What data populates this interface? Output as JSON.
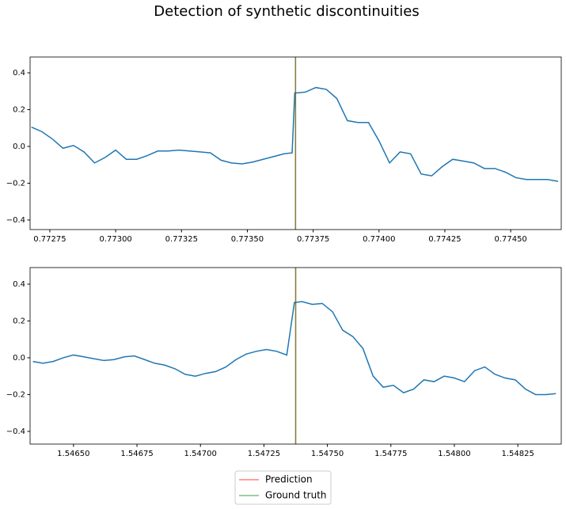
{
  "title": "Detection of synthetic discontinuities",
  "legend": {
    "loc": "lower center",
    "opacity": 0.5,
    "entries": [
      {
        "name": "Prediction",
        "color": "red"
      },
      {
        "name": "Ground truth",
        "color": "green"
      }
    ]
  },
  "chart_data": [
    {
      "type": "line",
      "x": [
        0.77268,
        0.77272,
        0.77276,
        0.7728,
        0.77284,
        0.77288,
        0.77292,
        0.77296,
        0.773,
        0.77304,
        0.77308,
        0.77312,
        0.77316,
        0.7732,
        0.77324,
        0.77328,
        0.77332,
        0.77336,
        0.7734,
        0.77344,
        0.77348,
        0.77352,
        0.77356,
        0.7736,
        0.77364,
        0.77367,
        0.77368,
        0.77372,
        0.77376,
        0.7738,
        0.77384,
        0.77388,
        0.77392,
        0.77396,
        0.774,
        0.77404,
        0.77408,
        0.77412,
        0.77416,
        0.7742,
        0.77424,
        0.77428,
        0.77432,
        0.77436,
        0.7744,
        0.77444,
        0.77448,
        0.77452,
        0.77456,
        0.7746,
        0.77464,
        0.77468
      ],
      "series": [
        {
          "color": "#1f77b4",
          "values": [
            0.105,
            0.08,
            0.04,
            -0.01,
            0.005,
            -0.03,
            -0.09,
            -0.06,
            -0.02,
            -0.07,
            -0.07,
            -0.05,
            -0.025,
            -0.025,
            -0.02,
            -0.025,
            -0.03,
            -0.035,
            -0.075,
            -0.09,
            -0.095,
            -0.085,
            -0.07,
            -0.055,
            -0.04,
            -0.035,
            0.29,
            0.295,
            0.32,
            0.31,
            0.26,
            0.14,
            0.13,
            0.13,
            0.03,
            -0.09,
            -0.03,
            -0.04,
            -0.15,
            -0.16,
            -0.11,
            -0.07,
            -0.08,
            -0.09,
            -0.12,
            -0.12,
            -0.14,
            -0.17,
            -0.18,
            -0.18,
            -0.18,
            -0.19
          ]
        }
      ],
      "markers": [
        0.773683,
        0.773683
      ],
      "xlim": [
        0.772675,
        0.774692
      ],
      "xticks": [
        0.77275,
        {
          "value": 0.773,
          "label": "0.77300"
        },
        0.77325,
        {
          "value": 0.7735,
          "label": "0.77350"
        },
        0.77375,
        {
          "value": 0.774,
          "label": "0.77400"
        },
        0.77425,
        {
          "value": 0.7745,
          "label": "0.77450"
        }
      ],
      "ylim": [
        -0.452,
        0.486
      ],
      "yticks": [
        {
          "value": -0.4,
          "label": "−0.4"
        },
        {
          "value": -0.2,
          "label": "−0.2"
        },
        {
          "value": 0,
          "label": "0.0"
        },
        0.2,
        0.4
      ]
    },
    {
      "type": "line",
      "x": [
        1.54634,
        1.54638,
        1.54642,
        1.54646,
        1.5465,
        1.54654,
        1.54658,
        1.54662,
        1.54666,
        1.5467,
        1.54674,
        1.54678,
        1.54682,
        1.54686,
        1.5469,
        1.54694,
        1.54698,
        1.54702,
        1.54706,
        1.5471,
        1.54714,
        1.54718,
        1.54722,
        1.54726,
        1.5473,
        1.54734,
        1.54737,
        1.5474,
        1.54744,
        1.54748,
        1.54752,
        1.54756,
        1.5476,
        1.54764,
        1.54768,
        1.54772,
        1.54776,
        1.5478,
        1.54784,
        1.54788,
        1.54792,
        1.54796,
        1.548,
        1.54804,
        1.54808,
        1.54812,
        1.54816,
        1.5482,
        1.54824,
        1.54828,
        1.54832,
        1.54836,
        1.5484
      ],
      "series": [
        {
          "color": "#1f77b4",
          "values": [
            -0.02,
            -0.03,
            -0.02,
            0,
            0.015,
            0.005,
            -0.005,
            -0.015,
            -0.01,
            0.005,
            0.01,
            -0.01,
            -0.03,
            -0.04,
            -0.06,
            -0.09,
            -0.1,
            -0.085,
            -0.075,
            -0.05,
            -0.01,
            0.02,
            0.035,
            0.045,
            0.035,
            0.015,
            0.3,
            0.305,
            0.29,
            0.295,
            0.25,
            0.15,
            0.115,
            0.05,
            -0.1,
            -0.16,
            -0.15,
            -0.19,
            -0.17,
            -0.12,
            -0.13,
            -0.1,
            -0.11,
            -0.13,
            -0.07,
            -0.05,
            -0.09,
            -0.11,
            -0.12,
            -0.17,
            -0.2,
            -0.2,
            -0.195
          ]
        }
      ],
      "markers": [
        1.547375,
        1.547375
      ],
      "xlim": [
        1.546329,
        1.548421
      ],
      "xticks": [
        {
          "value": 1.5465,
          "label": "1.54650"
        },
        1.54675,
        {
          "value": 1.547,
          "label": "1.54700"
        },
        1.54725,
        {
          "value": 1.5475,
          "label": "1.54750"
        },
        1.54775,
        {
          "value": 1.548,
          "label": "1.54800"
        },
        1.54825
      ],
      "ylim": [
        -0.469,
        0.49
      ],
      "yticks": [
        {
          "value": -0.4,
          "label": "−0.4"
        },
        {
          "value": -0.2,
          "label": "−0.2"
        },
        {
          "value": 0,
          "label": "0.0"
        },
        0.2,
        0.4
      ]
    }
  ]
}
